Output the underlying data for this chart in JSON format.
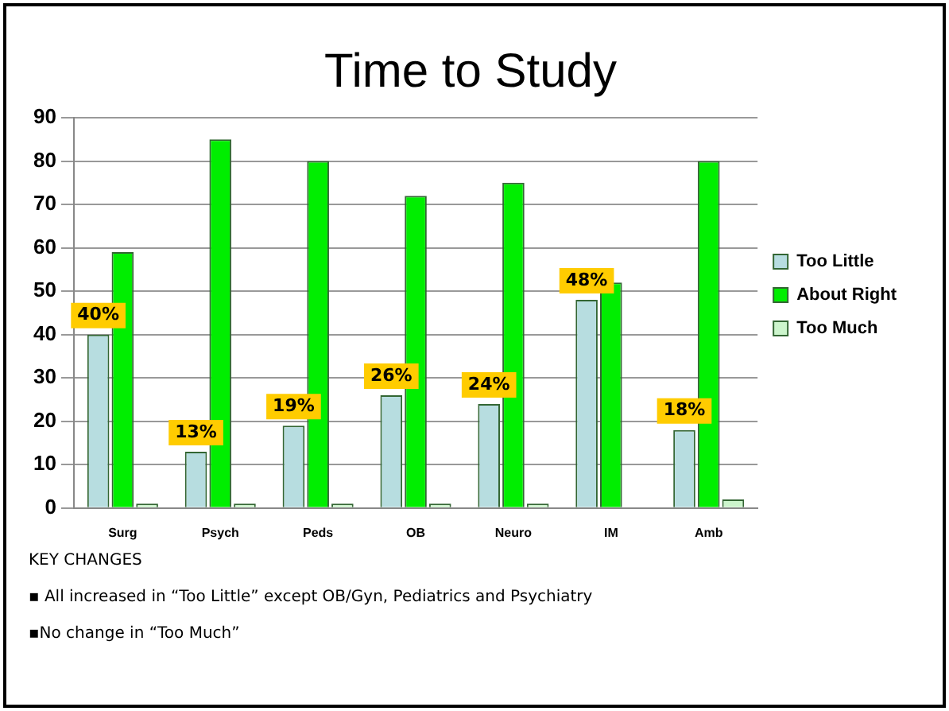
{
  "chart_data": {
    "type": "bar",
    "title": "Time to Study",
    "categories": [
      "Surg",
      "Psych",
      "Peds",
      "OB",
      "Neuro",
      "IM",
      "Amb"
    ],
    "series": [
      {
        "name": "Too Little",
        "color": "#b7dde0",
        "values": [
          40,
          13,
          19,
          26,
          24,
          48,
          18
        ],
        "value_labels": [
          "40%",
          "13%",
          "19%",
          "26%",
          "24%",
          "48%",
          "18%"
        ]
      },
      {
        "name": "About Right",
        "color": "#00ee00",
        "values": [
          59,
          85,
          80,
          72,
          75,
          52,
          80
        ]
      },
      {
        "name": "Too Much",
        "color": "#ccf5cc",
        "values": [
          1,
          1,
          1,
          1,
          1,
          0,
          2
        ]
      }
    ],
    "ylim": [
      0,
      90
    ],
    "yticks": [
      0,
      10,
      20,
      30,
      40,
      50,
      60,
      70,
      80,
      90
    ],
    "grid": "y",
    "legend": "right",
    "annotations": [
      "KEY CHANGES",
      "▪ All increased in “Too Little” except OB/Gyn, Pediatrics and Psychiatry",
      "▪No change in “Too Much”"
    ]
  }
}
